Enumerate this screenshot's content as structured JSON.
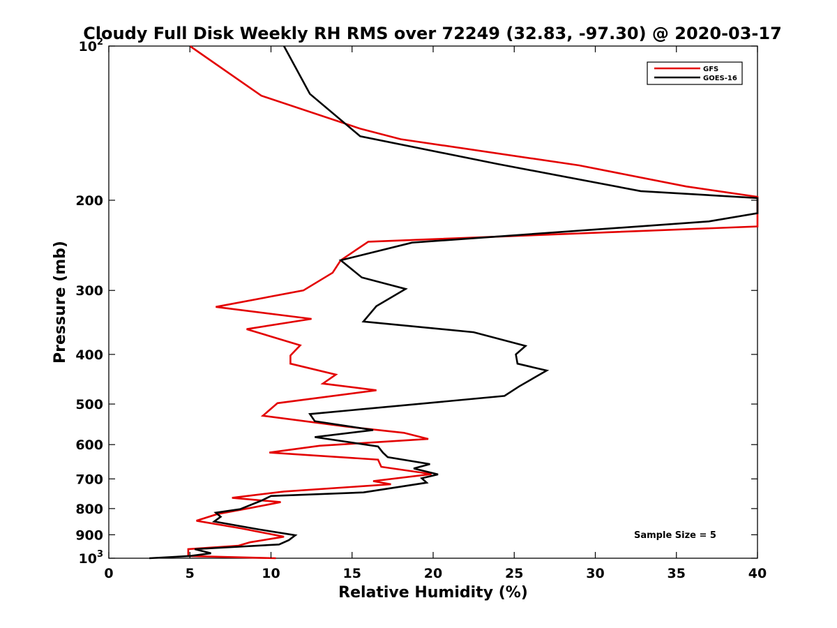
{
  "chart_data": {
    "type": "line",
    "title": "Cloudy Full Disk Weekly RH RMS over 72249 (32.83, -97.30) @ 2020-03-17",
    "xlabel": "Relative Humidity (%)",
    "ylabel": "Pressure (mb)",
    "xlim": [
      0,
      40
    ],
    "ylim": [
      100,
      1000
    ],
    "y_scale": "log",
    "y_reversed": true,
    "grid": false,
    "legend_position": "top-right",
    "x_ticks": [
      {
        "value": 0,
        "label": "0"
      },
      {
        "value": 5,
        "label": "5"
      },
      {
        "value": 10,
        "label": "10"
      },
      {
        "value": 15,
        "label": "15"
      },
      {
        "value": 20,
        "label": "20"
      },
      {
        "value": 25,
        "label": "25"
      },
      {
        "value": 30,
        "label": "30"
      },
      {
        "value": 35,
        "label": "35"
      },
      {
        "value": 40,
        "label": "40"
      }
    ],
    "y_ticks": [
      {
        "value": 100,
        "base": "10",
        "exp": "2"
      },
      {
        "value": 200,
        "base": "200",
        "exp": ""
      },
      {
        "value": 300,
        "base": "300",
        "exp": ""
      },
      {
        "value": 400,
        "base": "400",
        "exp": ""
      },
      {
        "value": 500,
        "base": "500",
        "exp": ""
      },
      {
        "value": 600,
        "base": "600",
        "exp": ""
      },
      {
        "value": 700,
        "base": "700",
        "exp": ""
      },
      {
        "value": 800,
        "base": "800",
        "exp": ""
      },
      {
        "value": 900,
        "base": "900",
        "exp": ""
      },
      {
        "value": 1000,
        "base": "10",
        "exp": "3"
      }
    ],
    "annotation": "Sample Size = 5",
    "series": [
      {
        "name": "GFS",
        "color": "#e30000",
        "points": [
          [
            5.0,
            100
          ],
          [
            9.4,
            125
          ],
          [
            15.5,
            145
          ],
          [
            18.0,
            152
          ],
          [
            29.0,
            171
          ],
          [
            35.6,
            188
          ],
          [
            40.0,
            197
          ],
          [
            40.0,
            225
          ],
          [
            16.0,
            241
          ],
          [
            14.3,
            262
          ],
          [
            13.8,
            277
          ],
          [
            12.0,
            300
          ],
          [
            6.6,
            323
          ],
          [
            12.5,
            341
          ],
          [
            8.5,
            357
          ],
          [
            11.8,
            384
          ],
          [
            11.2,
            402
          ],
          [
            11.2,
            417
          ],
          [
            14.0,
            438
          ],
          [
            13.2,
            456
          ],
          [
            16.5,
            470
          ],
          [
            10.4,
            498
          ],
          [
            9.5,
            527
          ],
          [
            14.6,
            553
          ],
          [
            18.2,
            569
          ],
          [
            19.7,
            585
          ],
          [
            13.0,
            603
          ],
          [
            9.9,
            622
          ],
          [
            16.6,
            642
          ],
          [
            16.8,
            663
          ],
          [
            19.9,
            685
          ],
          [
            16.3,
            707
          ],
          [
            17.4,
            717
          ],
          [
            10.8,
            741
          ],
          [
            7.6,
            762
          ],
          [
            10.6,
            777
          ],
          [
            8.8,
            797
          ],
          [
            6.7,
            820
          ],
          [
            5.4,
            845
          ],
          [
            8.2,
            875
          ],
          [
            10.8,
            908
          ],
          [
            8.7,
            931
          ],
          [
            8.0,
            945
          ],
          [
            4.9,
            960
          ],
          [
            4.9,
            975
          ],
          [
            4.9,
            990
          ],
          [
            10.3,
            1000
          ]
        ]
      },
      {
        "name": "GOES-16",
        "color": "#000000",
        "points": [
          [
            10.8,
            100
          ],
          [
            12.4,
            124
          ],
          [
            15.5,
            150
          ],
          [
            24.0,
            170
          ],
          [
            32.8,
            192
          ],
          [
            40.0,
            198
          ],
          [
            40.0,
            212
          ],
          [
            37.0,
            220
          ],
          [
            18.7,
            242
          ],
          [
            14.3,
            262
          ],
          [
            15.6,
            283
          ],
          [
            18.3,
            298
          ],
          [
            16.5,
            322
          ],
          [
            15.7,
            345
          ],
          [
            22.5,
            362
          ],
          [
            25.7,
            385
          ],
          [
            25.1,
            400
          ],
          [
            25.2,
            417
          ],
          [
            27.0,
            430
          ],
          [
            25.3,
            462
          ],
          [
            24.4,
            482
          ],
          [
            12.4,
            523
          ],
          [
            12.7,
            540
          ],
          [
            16.3,
            562
          ],
          [
            12.7,
            580
          ],
          [
            16.6,
            605
          ],
          [
            16.9,
            622
          ],
          [
            17.2,
            635
          ],
          [
            19.8,
            655
          ],
          [
            18.8,
            668
          ],
          [
            20.3,
            686
          ],
          [
            19.3,
            698
          ],
          [
            19.6,
            712
          ],
          [
            15.7,
            744
          ],
          [
            10.0,
            756
          ],
          [
            9.4,
            772
          ],
          [
            8.1,
            802
          ],
          [
            6.6,
            815
          ],
          [
            6.9,
            830
          ],
          [
            6.5,
            848
          ],
          [
            9.2,
            878
          ],
          [
            11.5,
            902
          ],
          [
            11.1,
            922
          ],
          [
            10.5,
            940
          ],
          [
            5.3,
            960
          ],
          [
            6.3,
            978
          ],
          [
            5.0,
            990
          ],
          [
            2.5,
            1000
          ]
        ]
      }
    ]
  }
}
